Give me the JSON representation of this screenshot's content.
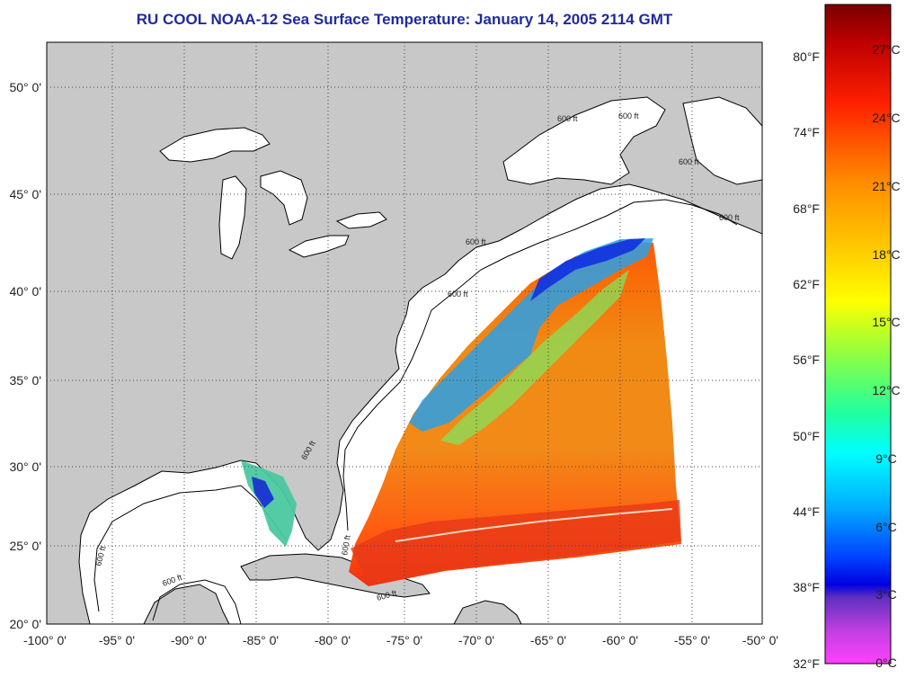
{
  "title": "RU COOL  NOAA-12  Sea Surface Temperature:  January 14, 2005 2114 GMT",
  "x_ticks": [
    "-100° 0'",
    "-95° 0'",
    "-90° 0'",
    "-85° 0'",
    "-80° 0'",
    "-75° 0'",
    "-70° 0'",
    "-65° 0'",
    "-60° 0'",
    "-55° 0'",
    "-50° 0'"
  ],
  "y_ticks": [
    "50° 0'",
    "45° 0'",
    "40° 0'",
    "35° 0'",
    "30° 0'",
    "25° 0'",
    "20° 0'"
  ],
  "colorbar": {
    "fahrenheit": [
      "80°F",
      "74°F",
      "68°F",
      "62°F",
      "56°F",
      "50°F",
      "44°F",
      "38°F",
      "32°F"
    ],
    "celsius": [
      "27°C",
      "24°C",
      "21°C",
      "18°C",
      "15°C",
      "12°C",
      "9°C",
      "6°C",
      "3°C",
      "0°C"
    ]
  },
  "contour_labels": [
    "600 ft",
    "600 ft",
    "600 ft",
    "600 ft",
    "600 ft",
    "600 ft",
    "600 ft",
    "600 ft",
    "600 ft",
    "600 ft",
    "600 ft"
  ],
  "colors": {
    "land": "#c8c8c8",
    "title": "#1f2aa0",
    "ocean": "#ffffff"
  }
}
